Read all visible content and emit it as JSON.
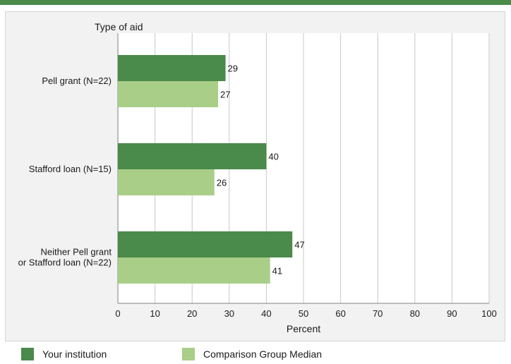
{
  "header": {
    "title": "Type of aid"
  },
  "colors": {
    "series1": "#4a8a4a",
    "series2": "#a9ce87",
    "rule": "#4a8a4a"
  },
  "legend": {
    "items": [
      {
        "label": "Your institution",
        "color": "#4a8a4a"
      },
      {
        "label": "Comparison Group Median",
        "color": "#a9ce87"
      }
    ]
  },
  "chart_data": {
    "type": "bar",
    "orientation": "horizontal",
    "categories": [
      [
        "Pell grant  (N=22)"
      ],
      [
        "Stafford loan (N=15)"
      ],
      [
        "Neither Pell grant",
        "or Stafford loan (N=22)"
      ]
    ],
    "series": [
      {
        "name": "Your institution",
        "values": [
          29,
          40,
          47
        ]
      },
      {
        "name": "Comparison Group Median",
        "values": [
          27,
          26,
          41
        ]
      }
    ],
    "title": "Type of aid",
    "xlabel": "Percent",
    "ylabel": "",
    "xlim": [
      0,
      100
    ],
    "xticks": [
      0,
      10,
      20,
      30,
      40,
      50,
      60,
      70,
      80,
      90,
      100
    ],
    "grid": true,
    "legend_position": "bottom"
  }
}
